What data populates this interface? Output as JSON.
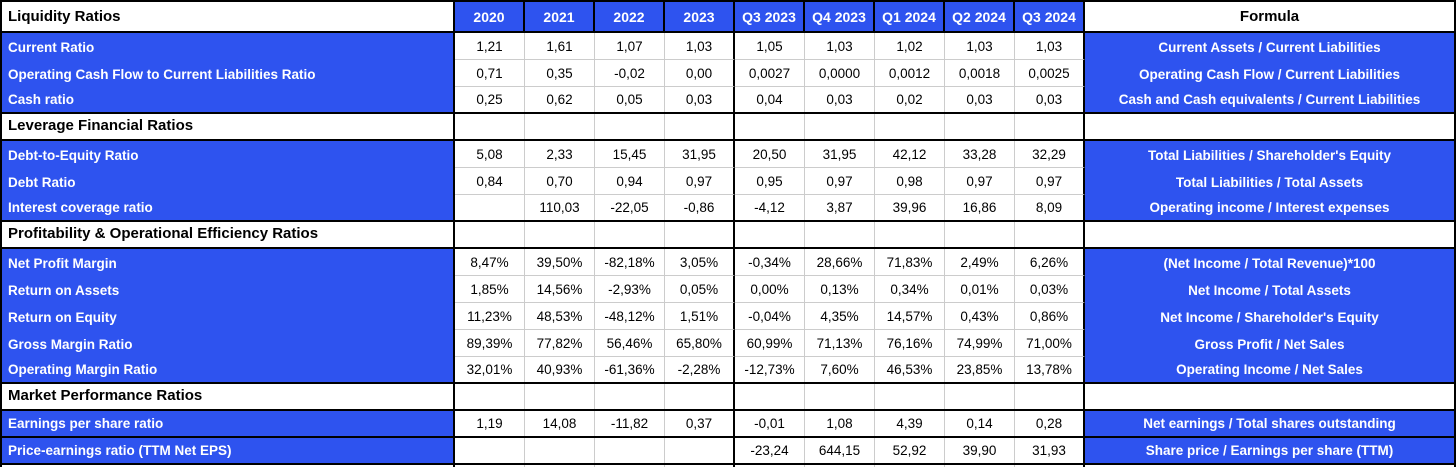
{
  "colors": {
    "accent_blue": "#2e53ef",
    "grid_line": "#cccccc",
    "border_black": "#000000"
  },
  "chart_data": {
    "type": "table",
    "corner_header": "Liquidity Ratios",
    "columns": [
      "2020",
      "2021",
      "2022",
      "2023",
      "Q3 2023",
      "Q4 2023",
      "Q1 2024",
      "Q2 2024",
      "Q3 2024"
    ],
    "formula_header": "Formula",
    "rows": [
      {
        "type": "data",
        "label": "Current Ratio",
        "values": [
          "1,21",
          "1,61",
          "1,07",
          "1,03",
          "1,05",
          "1,03",
          "1,02",
          "1,03",
          "1,03"
        ],
        "formula": "Current Assets / Current Liabilities"
      },
      {
        "type": "data",
        "label": "Operating Cash Flow to Current Liabilities Ratio",
        "values": [
          "0,71",
          "0,35",
          "-0,02",
          "0,00",
          "0,0027",
          "0,0000",
          "0,0012",
          "0,0018",
          "0,0025"
        ],
        "formula": "Operating Cash Flow / Current Liabilities"
      },
      {
        "type": "data",
        "label": "Cash ratio",
        "values": [
          "0,25",
          "0,62",
          "0,05",
          "0,03",
          "0,04",
          "0,03",
          "0,02",
          "0,03",
          "0,03"
        ],
        "formula": "Cash and Cash equivalents / Current Liabilities",
        "thick_bottom": true
      },
      {
        "type": "section",
        "label": "Leverage Financial Ratios",
        "thick_bottom": true
      },
      {
        "type": "data",
        "label": "Debt-to-Equity Ratio",
        "values": [
          "5,08",
          "2,33",
          "15,45",
          "31,95",
          "20,50",
          "31,95",
          "42,12",
          "33,28",
          "32,29"
        ],
        "formula": "Total Liabilities / Shareholder's Equity"
      },
      {
        "type": "data",
        "label": "Debt Ratio",
        "values": [
          "0,84",
          "0,70",
          "0,94",
          "0,97",
          "0,95",
          "0,97",
          "0,98",
          "0,97",
          "0,97"
        ],
        "formula": "Total Liabilities / Total Assets"
      },
      {
        "type": "data",
        "label": "Interest coverage ratio",
        "values": [
          "",
          "110,03",
          "-22,05",
          "-0,86",
          "-4,12",
          "3,87",
          "39,96",
          "16,86",
          "8,09"
        ],
        "formula": "Operating income / Interest expenses",
        "thick_bottom": true
      },
      {
        "type": "section",
        "label": "Profitability & Operational Efficiency Ratios",
        "thick_bottom": true
      },
      {
        "type": "data",
        "label": "Net Profit Margin",
        "values": [
          "8,47%",
          "39,50%",
          "-82,18%",
          "3,05%",
          "-0,34%",
          "28,66%",
          "71,83%",
          "2,49%",
          "6,26%"
        ],
        "formula": "(Net Income / Total Revenue)*100"
      },
      {
        "type": "data",
        "label": "Return on Assets",
        "values": [
          "1,85%",
          "14,56%",
          "-2,93%",
          "0,05%",
          "0,00%",
          "0,13%",
          "0,34%",
          "0,01%",
          "0,03%"
        ],
        "formula": "Net Income / Total Assets"
      },
      {
        "type": "data",
        "label": "Return on Equity",
        "values": [
          "11,23%",
          "48,53%",
          "-48,12%",
          "1,51%",
          "-0,04%",
          "4,35%",
          "14,57%",
          "0,43%",
          "0,86%"
        ],
        "formula": "Net Income / Shareholder's Equity"
      },
      {
        "type": "data",
        "label": "Gross Margin Ratio",
        "values": [
          "89,39%",
          "77,82%",
          "56,46%",
          "65,80%",
          "60,99%",
          "71,13%",
          "76,16%",
          "74,99%",
          "71,00%"
        ],
        "formula": "Gross Profit / Net Sales"
      },
      {
        "type": "data",
        "label": "Operating Margin Ratio",
        "values": [
          "32,01%",
          "40,93%",
          "-61,36%",
          "-2,28%",
          "-12,73%",
          "7,60%",
          "46,53%",
          "23,85%",
          "13,78%"
        ],
        "formula": "Operating Income / Net Sales",
        "thick_bottom": true
      },
      {
        "type": "section",
        "label": "Market Performance Ratios",
        "thick_bottom": true
      },
      {
        "type": "data",
        "label": "Earnings per share ratio",
        "values": [
          "1,19",
          "14,08",
          "-11,82",
          "0,37",
          "-0,01",
          "1,08",
          "4,39",
          "0,14",
          "0,28"
        ],
        "formula": "Net earnings / Total shares outstanding",
        "thick_bottom": true
      },
      {
        "type": "data",
        "label": "Price-earnings ratio (TTM Net EPS)",
        "values": [
          "",
          "",
          "",
          "",
          "-23,24",
          "644,15",
          "52,92",
          "39,90",
          "31,93"
        ],
        "formula": "Share price / Earnings per share (TTM)",
        "thick_bottom": true
      }
    ]
  }
}
